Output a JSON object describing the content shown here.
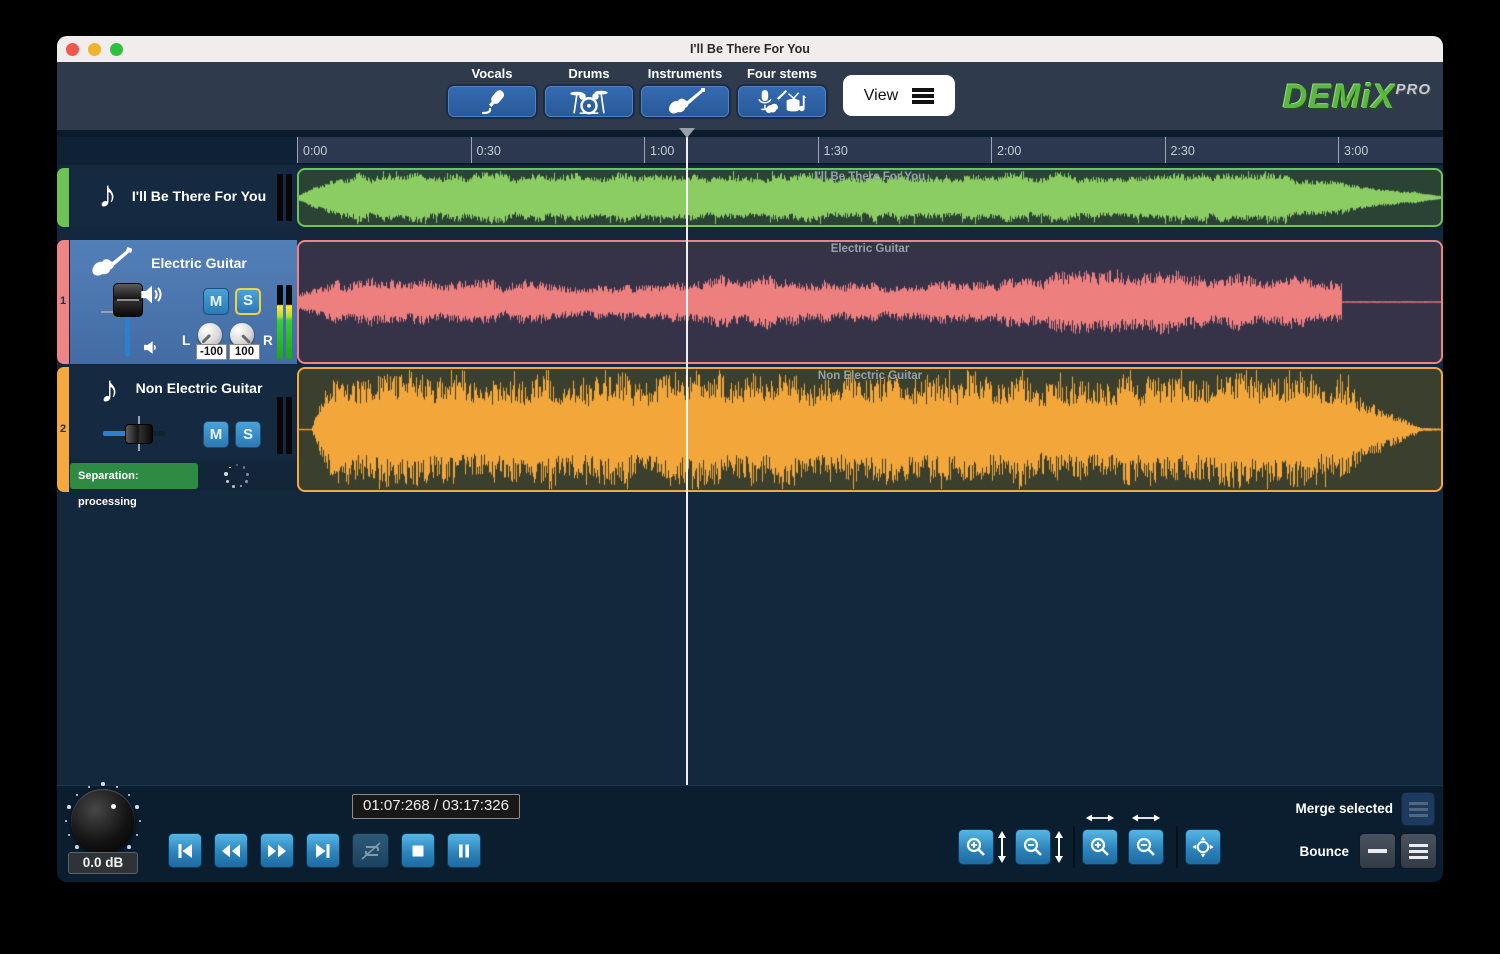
{
  "window": {
    "title": "I'll Be There For You"
  },
  "navbar": {
    "stems": [
      {
        "label": "Vocals"
      },
      {
        "label": "Drums"
      },
      {
        "label": "Instruments"
      },
      {
        "label": "Four stems"
      }
    ],
    "view_label": "View",
    "brand": "DEMiX",
    "brand_suffix": "PRO"
  },
  "ruler": {
    "labels": [
      "0:00",
      "0:30",
      "1:00",
      "1:30",
      "2:00",
      "2:30",
      "3:00"
    ]
  },
  "tracks": [
    {
      "name": "I'll Be There For You",
      "clip_label": "I'll Be There For You",
      "accent": "#6fc356",
      "wave_color": "#8ccd63"
    },
    {
      "name": "Electric Guitar",
      "clip_label": "Electric Guitar",
      "index": "1",
      "accent": "#ef8484",
      "wave_color": "#ee7f7f",
      "mute_label": "M",
      "solo_label": "S",
      "pan_left_label": "L",
      "pan_right_label": "R",
      "pan_left_value": "-100",
      "pan_right_value": "100"
    },
    {
      "name": "Non Electric Guitar",
      "clip_label": "Non Electric Guitar",
      "index": "2",
      "accent": "#f4a83e",
      "wave_color": "#f3a73b",
      "mute_label": "M",
      "solo_label": "S",
      "status": "Separation: processing"
    }
  ],
  "transport": {
    "time_display": "01:07:268 / 03:17:326",
    "volume_db": "0.0 dB"
  },
  "actions": {
    "merge_label": "Merge selected",
    "bounce_label": "Bounce"
  }
}
